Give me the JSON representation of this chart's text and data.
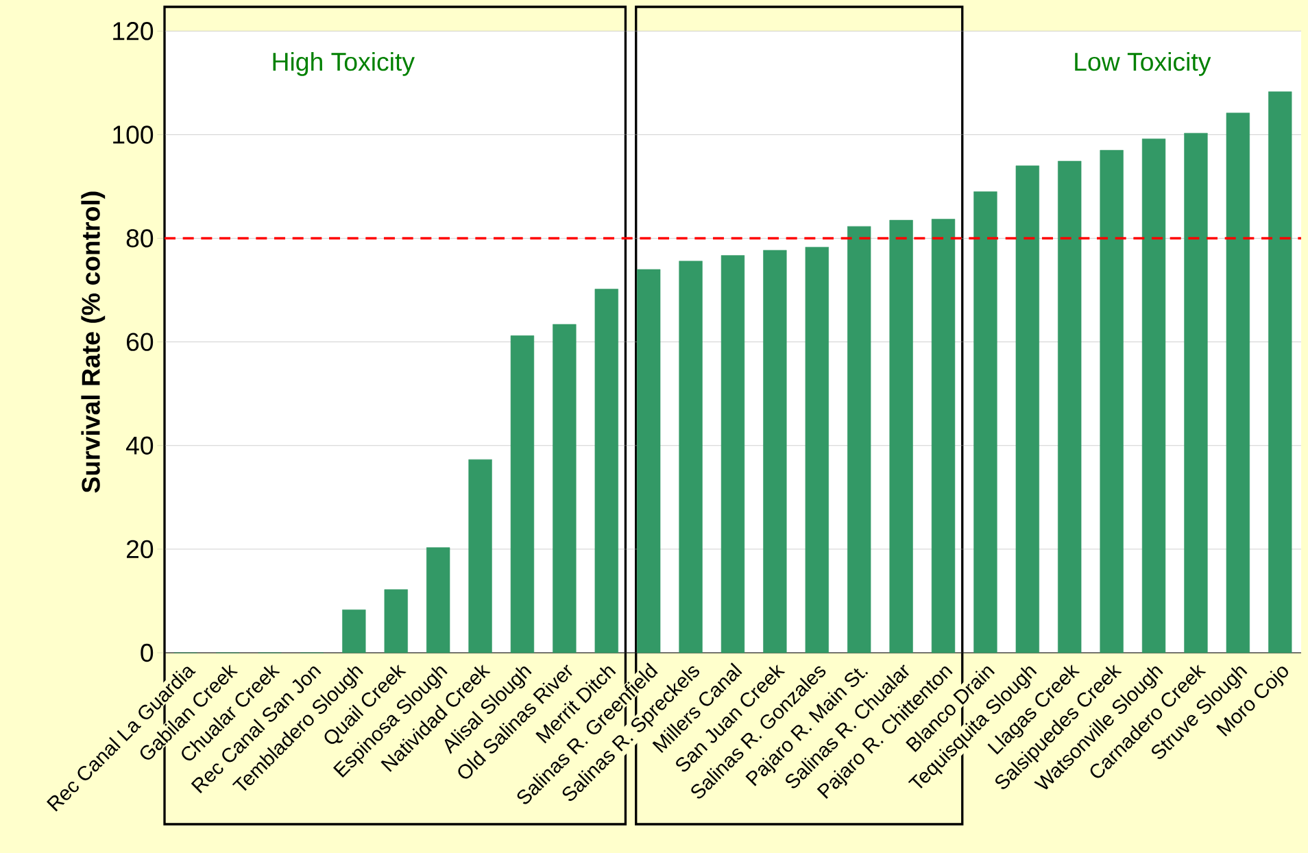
{
  "chart_data": {
    "type": "bar",
    "ylabel": "Survival Rate (% control)",
    "categories": [
      "Rec Canal La Guardia",
      "Gabilan Creek",
      "Chualar Creek",
      "Rec Canal San Jon",
      "Tembladero Slough",
      "Quail Creek",
      "Espinosa Slough",
      "Natividad Creek",
      "Alisal Slough",
      "Old Salinas River",
      "Merrit Ditch",
      "Salinas R. Greenfield",
      "Salinas R. Spreckels",
      "Millers Canal",
      "San Juan Creek",
      "Salinas R. Gonzales",
      "Pajaro R. Main St.",
      "Salinas R. Chualar",
      "Pajaro R. Chittenton",
      "Blanco Drain",
      "Tequisquita Slough",
      "Llagas Creek",
      "Salsipuedes Creek",
      "Watsonville Slough",
      "Carnadero Creek",
      "Struve Slough",
      "Moro Cojo"
    ],
    "values": [
      0,
      0,
      0,
      0,
      8.3,
      12.2,
      20.3,
      37.3,
      61.2,
      63.4,
      70.2,
      74,
      75.6,
      76.7,
      77.7,
      78.3,
      82.3,
      83.5,
      83.7,
      89,
      94,
      94.9,
      97,
      99.2,
      100.3,
      104.2,
      108.3
    ],
    "color": "#339966",
    "ylim": [
      0,
      120
    ],
    "yticks": [
      0,
      20,
      40,
      60,
      80,
      100,
      120
    ],
    "grid": "y",
    "ref_lines": [
      {
        "axis": "y",
        "value": 80,
        "color": "#ff0000",
        "line_style": "dashed"
      }
    ],
    "annotations": [
      "High Toxicity",
      "Low Toxicity"
    ]
  }
}
